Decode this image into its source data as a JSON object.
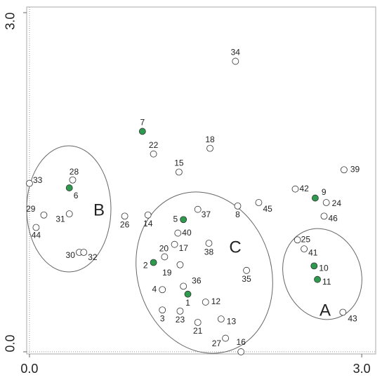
{
  "chart_data": {
    "type": "scatter",
    "labels": [
      "1",
      "2",
      "3",
      "4",
      "5",
      "6",
      "7",
      "8",
      "9",
      "10",
      "11",
      "12",
      "13",
      "14",
      "15",
      "16",
      "17",
      "18",
      "19",
      "20",
      "21",
      "22",
      "23",
      "24",
      "25",
      "26",
      "27",
      "28",
      "29",
      "30",
      "31",
      "32",
      "33",
      "34",
      "35",
      "36",
      "37",
      "38",
      "39",
      "40",
      "41",
      "42",
      "43",
      "44",
      "45",
      "46"
    ],
    "x": [
      1.43,
      1.12,
      1.2,
      1.2,
      1.39,
      0.36,
      1.02,
      1.88,
      2.58,
      2.57,
      2.6,
      1.59,
      1.73,
      1.07,
      1.35,
      1.91,
      1.31,
      1.63,
      1.36,
      1.22,
      1.52,
      1.12,
      1.36,
      2.68,
      2.42,
      0.86,
      1.77,
      0.39,
      0.13,
      0.45,
      0.36,
      0.49,
      0.0,
      1.86,
      1.96,
      1.39,
      1.52,
      1.62,
      2.84,
      1.34,
      2.48,
      2.4,
      2.83,
      0.06,
      2.07,
      2.66
    ],
    "y": [
      0.51,
      0.79,
      0.37,
      0.55,
      1.17,
      1.45,
      1.95,
      1.29,
      1.36,
      0.76,
      0.64,
      0.44,
      0.29,
      1.21,
      1.59,
      0.0,
      0.95,
      1.8,
      0.77,
      0.84,
      0.26,
      1.75,
      0.36,
      1.32,
      0.99,
      1.2,
      0.12,
      1.52,
      1.21,
      0.88,
      1.22,
      0.88,
      1.49,
      2.57,
      0.72,
      0.58,
      1.26,
      0.96,
      1.61,
      1.05,
      0.91,
      1.44,
      0.35,
      1.1,
      1.32,
      1.2
    ],
    "colors": [
      "#2e9a4e",
      "#2e9a4e",
      "#ffffff",
      "#ffffff",
      "#2e9a4e",
      "#2e9a4e",
      "#2e9a4e",
      "#ffffff",
      "#2e9a4e",
      "#2e9a4e",
      "#2e9a4e",
      "#ffffff",
      "#ffffff",
      "#ffffff",
      "#ffffff",
      "#ffffff",
      "#ffffff",
      "#ffffff",
      "#ffffff",
      "#ffffff",
      "#ffffff",
      "#ffffff",
      "#ffffff",
      "#ffffff",
      "#ffffff",
      "#ffffff",
      "#ffffff",
      "#ffffff",
      "#ffffff",
      "#ffffff",
      "#ffffff",
      "#ffffff",
      "#ffffff",
      "#ffffff",
      "#ffffff",
      "#ffffff",
      "#ffffff",
      "#ffffff",
      "#ffffff",
      "#ffffff",
      "#ffffff",
      "#ffffff",
      "#ffffff",
      "#ffffff",
      "#ffffff",
      "#ffffff"
    ],
    "groups": [
      "A",
      "B",
      "C"
    ],
    "xlim": [
      -0.025,
      3.126
    ],
    "ylim": [
      -0.019,
      3.05
    ],
    "xticks": [
      {
        "value": 0,
        "label": "0.0"
      },
      {
        "value": 3,
        "label": "3.0"
      }
    ],
    "yticks": [
      {
        "value": 0,
        "label": "0.0"
      },
      {
        "value": 3,
        "label": "3.0"
      }
    ]
  }
}
